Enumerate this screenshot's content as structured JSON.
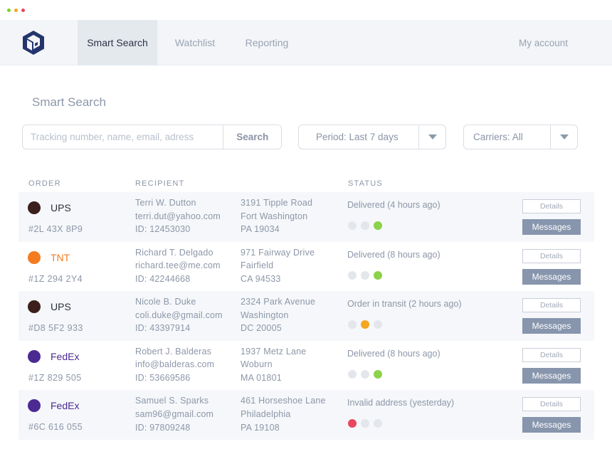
{
  "window": {
    "dot_colors": [
      "#7ed321",
      "#f5a623",
      "#e8475f"
    ]
  },
  "header": {
    "logo_icon": "cube-logo-icon",
    "tabs": [
      {
        "label": "Smart Search",
        "active": true
      },
      {
        "label": "Watchlist",
        "active": false
      },
      {
        "label": "Reporting",
        "active": false
      }
    ],
    "account_label": "My account"
  },
  "page": {
    "title": "Smart Search"
  },
  "search": {
    "placeholder": "Tracking number, name, email, adress",
    "value": "",
    "button_label": "Search"
  },
  "filters": {
    "period": {
      "label": "Period: Last 7 days",
      "icon": "caret-down-icon"
    },
    "carriers": {
      "label": "Carriers: All",
      "icon": "caret-down-icon"
    }
  },
  "table": {
    "columns": {
      "order": "ORDER",
      "recipient": "RECIPIENT",
      "status": "STATUS"
    },
    "details_label": "Details",
    "messages_label": "Messages",
    "rows": [
      {
        "carrier": "UPS",
        "carrier_color": "#3a1f1c",
        "carrier_text_color": "#2b2f3a",
        "order_code": "#2L 43X 8P9",
        "name": "Terri W. Dutton",
        "email": "terri.dut@yahoo.com",
        "id": "ID: 12453030",
        "address_line1": "3191 Tipple Road",
        "address_line2": "Fort Washington",
        "address_line3": "PA 19034",
        "status": "Delivered (4 hours ago)",
        "status_dots": [
          "#e3e7ec",
          "#e3e7ec",
          "#8cd24a"
        ]
      },
      {
        "carrier": "TNT",
        "carrier_color": "#f47b20",
        "carrier_text_color": "#f47b20",
        "order_code": "#1Z 294 2Y4",
        "name": "Richard T. Delgado",
        "email": "richard.tee@me.com",
        "id": "ID: 42244668",
        "address_line1": "971 Fairway Drive",
        "address_line2": "Fairfield",
        "address_line3": "CA 94533",
        "status": "Delivered (8 hours ago)",
        "status_dots": [
          "#e3e7ec",
          "#e3e7ec",
          "#8cd24a"
        ]
      },
      {
        "carrier": "UPS",
        "carrier_color": "#3a1f1c",
        "carrier_text_color": "#2b2f3a",
        "order_code": "#D8 5F2 933",
        "name": "Nicole B. Duke",
        "email": "coli.duke@gmail.com",
        "id": "ID: 43397914",
        "address_line1": "2324 Park Avenue",
        "address_line2": "Washington",
        "address_line3": "DC 20005",
        "status": "Order in transit (2 hours ago)",
        "status_dots": [
          "#e3e7ec",
          "#f5a623",
          "#e3e7ec"
        ]
      },
      {
        "carrier": "FedEx",
        "carrier_color": "#4b2a92",
        "carrier_text_color": "#4b2a92",
        "order_code": "#1Z 829 505",
        "name": "Robert J. Balderas",
        "email": "info@balderas.com",
        "id": "ID: 53669586",
        "address_line1": "1937 Metz Lane",
        "address_line2": "Woburn",
        "address_line3": "MA 01801",
        "status": "Delivered (8 hours ago)",
        "status_dots": [
          "#e3e7ec",
          "#e3e7ec",
          "#8cd24a"
        ]
      },
      {
        "carrier": "FedEx",
        "carrier_color": "#4b2a92",
        "carrier_text_color": "#4b2a92",
        "order_code": "#6C 616 055",
        "name": "Samuel S. Sparks",
        "email": "sam96@gmail.com",
        "id": "ID: 97809248",
        "address_line1": "461 Horseshoe Lane",
        "address_line2": "Philadelphia",
        "address_line3": "PA 19108",
        "status": "Invalid address (yesterday)",
        "status_dots": [
          "#e8475f",
          "#e3e7ec",
          "#e3e7ec"
        ]
      }
    ]
  }
}
